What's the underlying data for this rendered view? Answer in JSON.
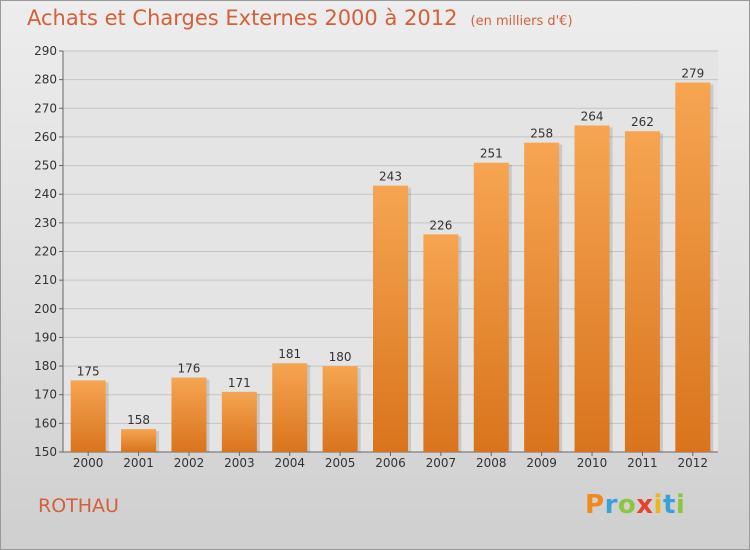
{
  "chart_data": {
    "type": "bar",
    "title": "Achats et Charges Externes 2000 à 2012",
    "unit": "(en milliers d'€)",
    "categories": [
      "2000",
      "2001",
      "2002",
      "2003",
      "2004",
      "2005",
      "2006",
      "2007",
      "2008",
      "2009",
      "2010",
      "2011",
      "2012"
    ],
    "values": [
      175,
      158,
      176,
      171,
      181,
      180,
      243,
      226,
      251,
      258,
      264,
      262,
      279
    ],
    "xlabel": "",
    "ylabel": "",
    "ylim": [
      150,
      290
    ],
    "yticks": [
      150,
      160,
      170,
      180,
      190,
      200,
      210,
      220,
      230,
      240,
      250,
      260,
      270,
      280,
      290
    ],
    "grid": true,
    "bar_color": "#f0923a"
  },
  "commune": "ROTHAU",
  "logo": {
    "text": "Proxiti",
    "letters": [
      "P",
      "r",
      "o",
      "x",
      "i",
      "t",
      "i"
    ],
    "colors": [
      "#f08a1c",
      "#3aa0dc",
      "#8cc63f",
      "#e8412c",
      "#f0b41c",
      "#3aa0dc",
      "#8cc63f"
    ]
  }
}
